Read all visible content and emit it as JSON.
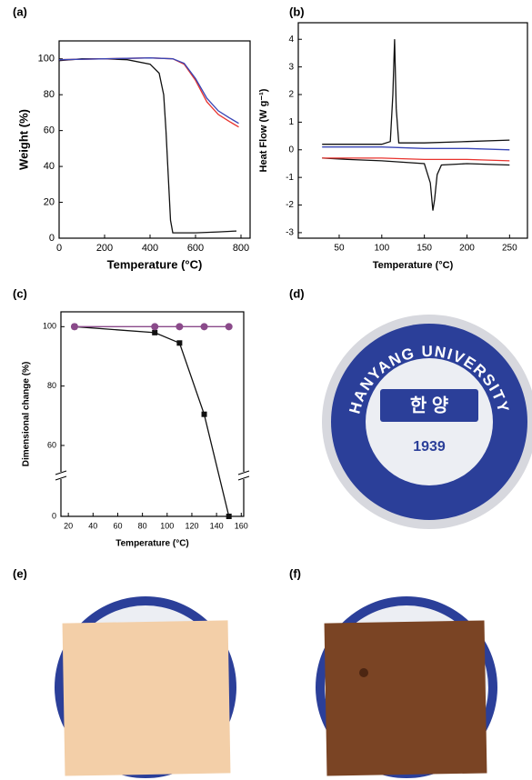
{
  "chart_data": [
    {
      "type": "line",
      "label": "(a)",
      "x_label": "Temperature (°C)",
      "y_label": "Weight (%)",
      "xlim": [
        0,
        840
      ],
      "xticks": [
        0,
        200,
        400,
        600,
        800
      ],
      "ylim": [
        0,
        110
      ],
      "yticks": [
        0,
        20,
        40,
        60,
        80,
        100
      ],
      "series": [
        {
          "color": "#111111",
          "x": [
            0,
            100,
            200,
            300,
            400,
            440,
            460,
            470,
            480,
            490,
            500,
            600,
            700,
            780
          ],
          "values": [
            99,
            100,
            100,
            99.5,
            97,
            92,
            80,
            60,
            35,
            10,
            3,
            3,
            3.5,
            4
          ]
        },
        {
          "color": "#e8332e",
          "x": [
            0,
            200,
            400,
            500,
            550,
            600,
            650,
            700,
            750,
            790
          ],
          "values": [
            99.5,
            100,
            100.5,
            100,
            97,
            88,
            76,
            69,
            65,
            62
          ]
        },
        {
          "color": "#3845b5",
          "x": [
            0,
            200,
            400,
            500,
            550,
            600,
            650,
            700,
            750,
            790
          ],
          "values": [
            99.5,
            100,
            100.5,
            100,
            97.5,
            89,
            78,
            71,
            67,
            64
          ]
        }
      ]
    },
    {
      "type": "line",
      "label": "(b)",
      "x_label": "Temperature (°C)",
      "y_label": "Heat Flow (W g⁻¹)",
      "xlim": [
        2,
        271
      ],
      "xticks": [
        50,
        100,
        150,
        200,
        250
      ],
      "ylim": [
        -3.2,
        4.6
      ],
      "yticks": [
        -3,
        -2,
        -1,
        0,
        1,
        2,
        3,
        4
      ],
      "series": [
        {
          "color": "#111111",
          "x": [
            30,
            60,
            100,
            110,
            113,
            115,
            117,
            120,
            150,
            200,
            250
          ],
          "values": [
            0.2,
            0.2,
            0.2,
            0.3,
            2,
            4,
            1.5,
            0.25,
            0.25,
            0.3,
            0.35
          ]
        },
        {
          "color": "#111111",
          "x": [
            250,
            200,
            170,
            165,
            162,
            160,
            157,
            150,
            100,
            60,
            30
          ],
          "values": [
            -0.55,
            -0.5,
            -0.55,
            -0.9,
            -1.8,
            -2.2,
            -1.2,
            -0.5,
            -0.4,
            -0.35,
            -0.3
          ]
        },
        {
          "color": "#3845b5",
          "x": [
            30,
            100,
            150,
            200,
            250
          ],
          "values": [
            0.1,
            0.1,
            0.05,
            0.05,
            0
          ]
        },
        {
          "color": "#e8332e",
          "x": [
            30,
            100,
            150,
            200,
            250
          ],
          "values": [
            -0.3,
            -0.3,
            -0.35,
            -0.35,
            -0.4
          ]
        }
      ]
    },
    {
      "type": "line",
      "label": "(c)",
      "x_label": "Temperature (°C)",
      "y_label": "Dimensional change (%)",
      "xlim": [
        14,
        162
      ],
      "xticks": [
        20,
        40,
        60,
        80,
        100,
        120,
        140,
        160
      ],
      "ylim": [
        0,
        105
      ],
      "yticks": [
        0,
        60,
        80,
        100
      ],
      "broken_axis": true,
      "series": [
        {
          "color": "#111111",
          "marker": "square",
          "x": [
            25,
            90,
            110,
            130,
            150
          ],
          "values": [
            100,
            98,
            94.5,
            70.5,
            0
          ]
        },
        {
          "color": "#8a4a8a",
          "marker": "circle",
          "x": [
            25,
            90,
            110,
            130,
            150
          ],
          "values": [
            100,
            100,
            100,
            100,
            100
          ]
        }
      ]
    }
  ],
  "photos": [
    {
      "label": "(d)",
      "texts": [
        "HANYANG UNIVERSITY",
        "한 양",
        "1939"
      ]
    },
    {
      "label": "(e)"
    },
    {
      "label": "(f)"
    }
  ]
}
